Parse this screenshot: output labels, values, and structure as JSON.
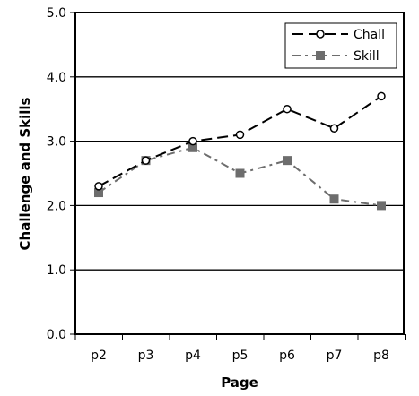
{
  "chart_data": {
    "type": "line",
    "title": "",
    "xlabel": "Page",
    "ylabel": "Challenge and Skills",
    "categories": [
      "p2",
      "p3",
      "p4",
      "p5",
      "p6",
      "p7",
      "p8"
    ],
    "ylim": [
      0,
      5
    ],
    "yticks": [
      "0.0",
      "1.0",
      "2.0",
      "3.0",
      "4.0",
      "5.0"
    ],
    "grid": true,
    "legend_position": "top-right",
    "series": [
      {
        "name": "Chall",
        "values": [
          2.3,
          2.7,
          3.0,
          3.1,
          3.5,
          3.2,
          3.7
        ],
        "color": "#000000",
        "marker": "circle-open",
        "line_style": "long-dash"
      },
      {
        "name": "Skill",
        "values": [
          2.2,
          2.7,
          2.9,
          2.5,
          2.7,
          2.1,
          2.0
        ],
        "color": "#6d6d6d",
        "marker": "square-filled",
        "line_style": "dash-dot"
      }
    ]
  }
}
